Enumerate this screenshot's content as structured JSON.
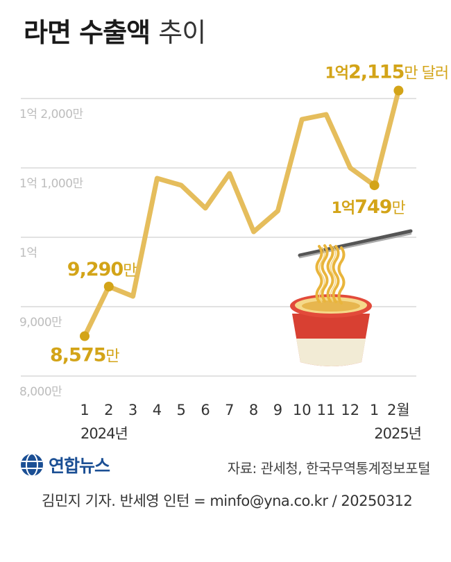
{
  "title": {
    "main": "라면 수출액",
    "sub": "추이"
  },
  "colors": {
    "line": "#e5bd5c",
    "highlight": "#d3a418",
    "grid": "#d9d9d9",
    "axis_label": "#bdbdbd",
    "logo": "#1b4f94"
  },
  "chart_data": {
    "type": "line",
    "unit_note": "values in 만 달러 (10,000 USD)",
    "x": [
      "1",
      "2",
      "3",
      "4",
      "5",
      "6",
      "7",
      "8",
      "9",
      "10",
      "11",
      "12",
      "1",
      "2월"
    ],
    "year_labels": [
      "2024년",
      "2025년"
    ],
    "y_tick_labels": [
      "8,000만",
      "9,000만",
      "1억",
      "1억 1,000만",
      "1억 2,000만"
    ],
    "y_ticks": [
      8000,
      9000,
      10000,
      11000,
      12000
    ],
    "ylim": [
      8000,
      12200
    ],
    "values": [
      8575,
      9290,
      9150,
      10850,
      10750,
      10420,
      10920,
      10080,
      10380,
      11700,
      11770,
      11000,
      10749,
      12115
    ],
    "annotations": [
      {
        "index": 0,
        "number": "8,575",
        "unit": "만"
      },
      {
        "index": 1,
        "number": "9,290",
        "unit": "만"
      },
      {
        "index": 12,
        "prefix": "1억",
        "number": "749",
        "unit": "만"
      },
      {
        "index": 13,
        "prefix": "1억",
        "number": "2,115",
        "unit": "만 달러"
      }
    ],
    "grid": true,
    "illustration": "cup-noodle-with-chopsticks"
  },
  "footer": {
    "logo_text": "연합뉴스",
    "source": "자료: 관세청, 한국무역통계정보포털",
    "credit": "김민지 기자. 반세영 인턴 = minfo@yna.co.kr / 20250312"
  }
}
